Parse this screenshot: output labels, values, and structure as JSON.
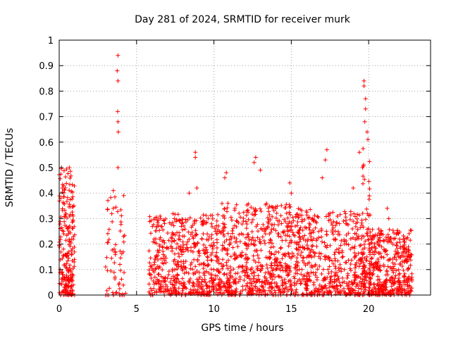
{
  "chart_data": {
    "type": "scatter",
    "title": "Day 281 of 2024, SRMTID for receiver murk",
    "xlabel": "GPS time / hours",
    "ylabel": "SRMTID / TECUs",
    "xlim": [
      0,
      24
    ],
    "ylim": [
      0,
      1
    ],
    "x_ticks": [
      0,
      5,
      10,
      15,
      20
    ],
    "x_tick_labels": [
      "0",
      "5",
      "10",
      "15",
      "20"
    ],
    "y_ticks": [
      0,
      0.1,
      0.2,
      0.3,
      0.4,
      0.5,
      0.6,
      0.7,
      0.8,
      0.9,
      1
    ],
    "y_tick_labels": [
      "0",
      "0.1",
      "0.2",
      "0.3",
      "0.4",
      "0.5",
      "0.6",
      "0.7",
      "0.8",
      "0.9",
      "1"
    ],
    "grid": true,
    "marker": "plus",
    "color": "#ff0000",
    "clusters": [
      {
        "x0": 0.0,
        "x1": 1.0,
        "y_max": 0.5,
        "count": 220,
        "peaks": [
          [
            0.15,
            0.5
          ],
          [
            0.2,
            0.42
          ],
          [
            0.1,
            0.38
          ],
          [
            0.9,
            0.31
          ]
        ]
      },
      {
        "x0": 3.0,
        "x1": 4.3,
        "y_max": 0.4,
        "count": 60,
        "peaks": [
          [
            3.8,
            0.94
          ],
          [
            3.75,
            0.88
          ],
          [
            3.8,
            0.84
          ],
          [
            3.78,
            0.72
          ],
          [
            3.8,
            0.68
          ],
          [
            3.82,
            0.64
          ],
          [
            3.8,
            0.5
          ],
          [
            3.5,
            0.41
          ],
          [
            3.5,
            0.34
          ]
        ]
      },
      {
        "x0": 5.8,
        "x1": 10.2,
        "y_max": 0.32,
        "count": 520,
        "peaks": [
          [
            8.8,
            0.56
          ],
          [
            8.8,
            0.54
          ],
          [
            8.9,
            0.42
          ],
          [
            8.4,
            0.4
          ]
        ]
      },
      {
        "x0": 10.2,
        "x1": 15.1,
        "y_max": 0.36,
        "count": 620,
        "peaks": [
          [
            10.8,
            0.48
          ],
          [
            10.7,
            0.46
          ],
          [
            12.7,
            0.54
          ],
          [
            12.6,
            0.52
          ],
          [
            13.0,
            0.49
          ],
          [
            14.9,
            0.44
          ],
          [
            15.0,
            0.4
          ]
        ]
      },
      {
        "x0": 15.1,
        "x1": 20.0,
        "y_max": 0.34,
        "count": 560,
        "peaks": [
          [
            17.3,
            0.57
          ],
          [
            17.2,
            0.53
          ],
          [
            17.0,
            0.46
          ],
          [
            19.4,
            0.56
          ],
          [
            19.6,
            0.5
          ],
          [
            19.0,
            0.42
          ]
        ]
      },
      {
        "x0": 19.6,
        "x1": 20.1,
        "y_max": 0.6,
        "count": 40,
        "peaks": [
          [
            19.7,
            0.84
          ],
          [
            19.7,
            0.82
          ],
          [
            19.8,
            0.77
          ],
          [
            19.8,
            0.73
          ],
          [
            19.75,
            0.68
          ],
          [
            19.9,
            0.64
          ],
          [
            19.95,
            0.61
          ]
        ]
      },
      {
        "x0": 20.0,
        "x1": 22.8,
        "y_max": 0.26,
        "count": 420,
        "peaks": [
          [
            21.2,
            0.34
          ],
          [
            21.3,
            0.3
          ]
        ]
      }
    ],
    "baseline_points_x": [
      0.1,
      0.3,
      0.8,
      1.0,
      3.0,
      3.2,
      3.5,
      3.9,
      4.0,
      4.1,
      4.2,
      5.9,
      6.0,
      6.8,
      7.2,
      13.3,
      14.0,
      15.2,
      15.7,
      15.8,
      16.3,
      16.5,
      16.7,
      17.0,
      17.6,
      19.6,
      20.6
    ]
  }
}
